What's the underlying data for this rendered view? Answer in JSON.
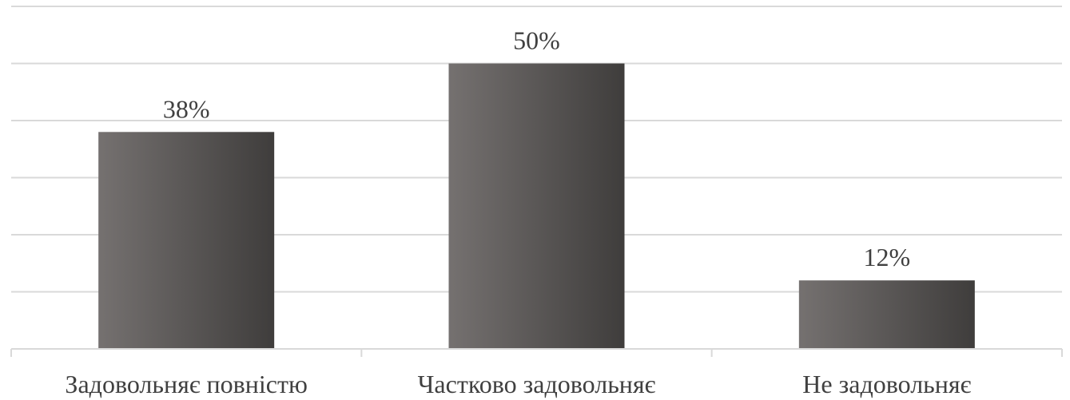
{
  "chart_data": {
    "type": "bar",
    "categories": [
      "Задовольняє повністю",
      "Частково задовольняє",
      "Не задовольняє"
    ],
    "values": [
      38,
      50,
      12
    ],
    "value_labels": [
      "38%",
      "50%",
      "12%"
    ],
    "unit": "%",
    "title": "",
    "xlabel": "",
    "ylabel": "",
    "ylim": [
      0,
      60
    ],
    "y_tick_step": 10,
    "y_tick_labels_visible": false,
    "grid": true,
    "legend": "none",
    "colors": {
      "bar_light": "#757170",
      "bar_dark": "#3f3d3c",
      "grid": "#d9d9d9",
      "text": "#404040"
    }
  }
}
